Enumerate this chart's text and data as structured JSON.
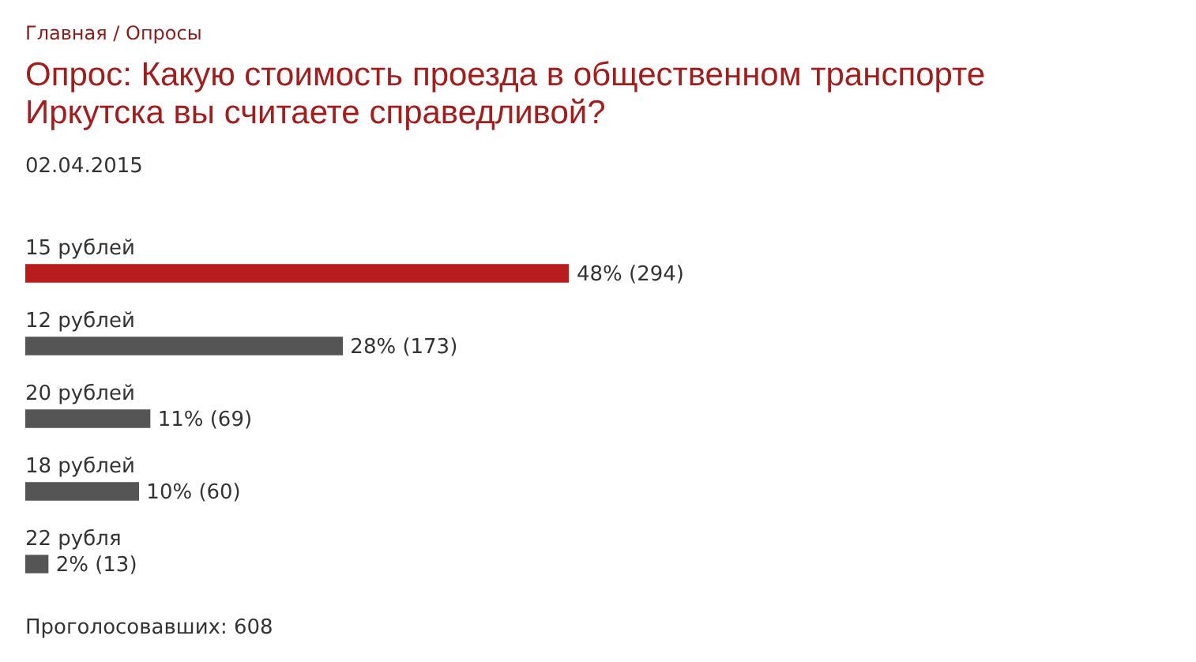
{
  "chart_data": {
    "type": "bar",
    "orientation": "horizontal",
    "title": "Опрос: Какую стоимость проезда в общественном транспорте Иркутска вы считаете справедливой?",
    "subtitle": "02.04.2015",
    "categories": [
      "15 рублей",
      "12 рублей",
      "20 рублей",
      "18 рублей",
      "22 рубля"
    ],
    "values": [
      48,
      28,
      11,
      10,
      2
    ],
    "colors": [
      "#b81c1c",
      "#555555",
      "#555555",
      "#555555",
      "#555555"
    ],
    "value_labels": [
      "48% (294)",
      "28% (173)",
      "11% (69)",
      "10% (60)",
      "2% (13)"
    ],
    "annotations": [
      "Главная / Опросы",
      "Проголосовавших: 608"
    ]
  }
}
